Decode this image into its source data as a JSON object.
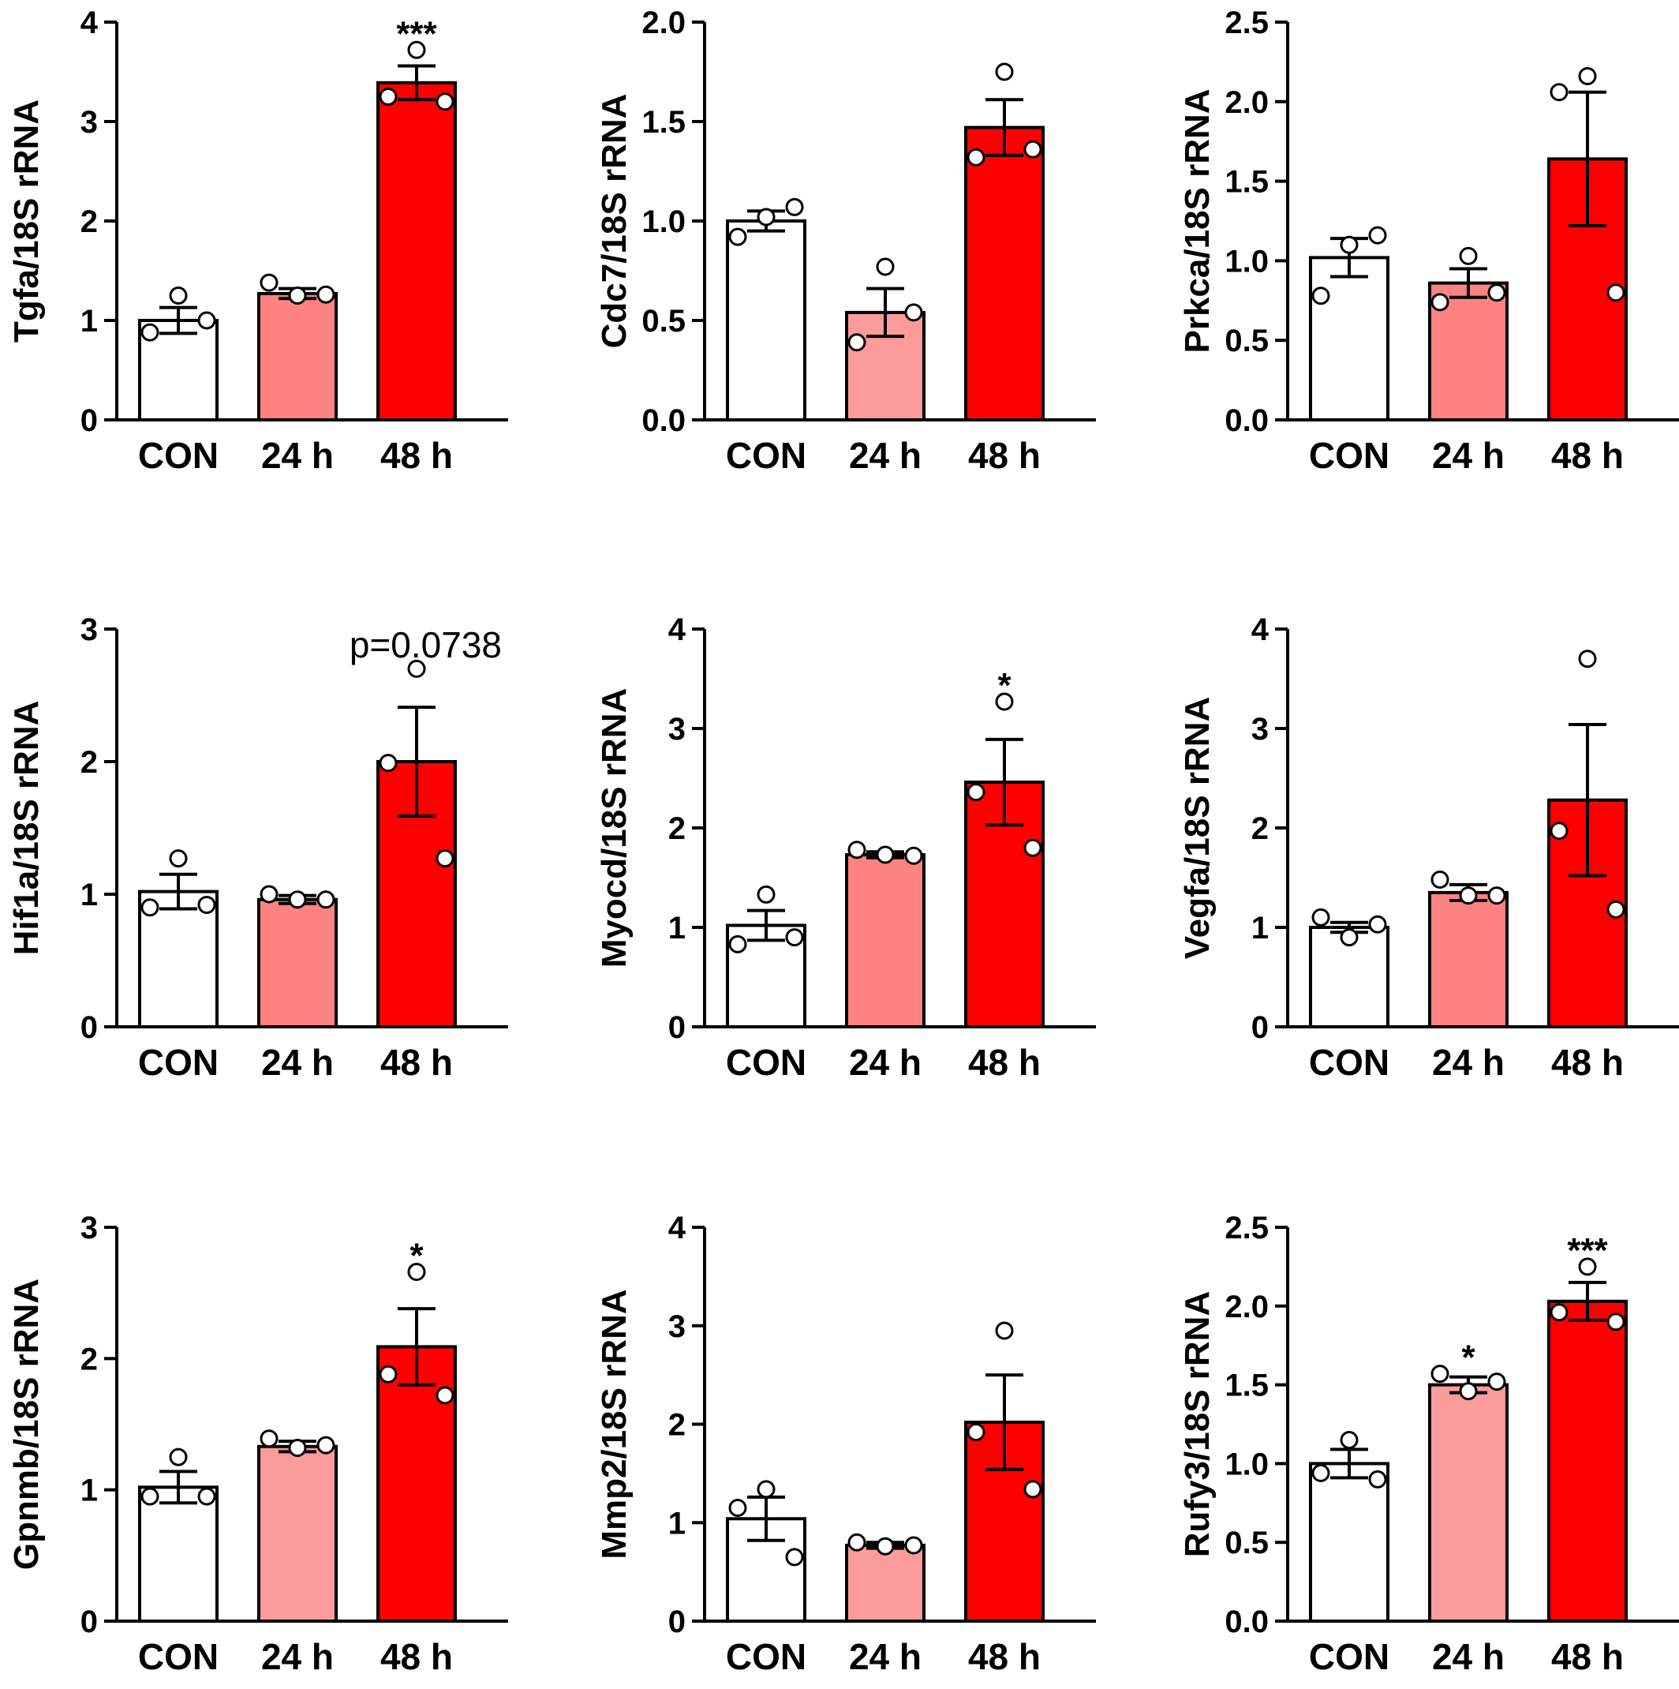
{
  "colors": {
    "CON": "#ffffff",
    "24 h": "#fd8282",
    "48 h": "#ff0000",
    "24 h light": "#fc9b9b",
    "outline": "#000000",
    "point": "#ffffff"
  },
  "chart_data": [
    {
      "type": "bar",
      "ylabel": "Tgfa/18S rRNA",
      "ylim": [
        0,
        4
      ],
      "yticks": [
        "0",
        "1",
        "2",
        "3",
        "4"
      ],
      "categories": [
        "CON",
        "24 h",
        "48 h"
      ],
      "bar_colors": [
        "CON",
        "24 h",
        "48 h"
      ],
      "values": [
        1.0,
        1.27,
        3.39
      ],
      "sem": [
        0.13,
        0.05,
        0.17
      ],
      "points": [
        [
          1.25,
          0.88,
          1.0
        ],
        [
          1.25,
          1.38,
          1.26
        ],
        [
          3.72,
          3.25,
          3.2
        ]
      ],
      "annotations": [
        "",
        "",
        "***"
      ]
    },
    {
      "type": "bar",
      "ylabel": "Cdc7/18S rRNA",
      "ylim": [
        0,
        2
      ],
      "yticks": [
        "0.0",
        "0.5",
        "1.0",
        "1.5",
        "2.0"
      ],
      "categories": [
        "CON",
        "24 h",
        "48 h"
      ],
      "bar_colors": [
        "CON",
        "24 h light",
        "48 h"
      ],
      "values": [
        1.0,
        0.54,
        1.47
      ],
      "sem": [
        0.05,
        0.12,
        0.14
      ],
      "points": [
        [
          1.02,
          0.92,
          1.07
        ],
        [
          0.77,
          0.39,
          0.54
        ],
        [
          1.75,
          1.32,
          1.36
        ]
      ],
      "annotations": [
        "",
        "",
        ""
      ]
    },
    {
      "type": "bar",
      "ylabel": "Prkca/18S rRNA",
      "ylim": [
        0,
        2.5
      ],
      "yticks": [
        "0.0",
        "0.5",
        "1.0",
        "1.5",
        "2.0",
        "2.5"
      ],
      "categories": [
        "CON",
        "24 h",
        "48 h"
      ],
      "bar_colors": [
        "CON",
        "24 h",
        "48 h"
      ],
      "values": [
        1.02,
        0.86,
        1.64
      ],
      "sem": [
        0.12,
        0.09,
        0.42
      ],
      "points": [
        [
          1.1,
          0.78,
          1.16
        ],
        [
          1.03,
          0.74,
          0.8
        ],
        [
          2.16,
          2.06,
          0.8
        ]
      ],
      "annotations": [
        "",
        "",
        ""
      ]
    },
    {
      "type": "bar",
      "ylabel": "Hif1a/18S rRNA",
      "ylim": [
        0,
        3
      ],
      "yticks": [
        "0",
        "1",
        "2",
        "3"
      ],
      "categories": [
        "CON",
        "24 h",
        "48 h"
      ],
      "bar_colors": [
        "CON",
        "24 h",
        "48 h"
      ],
      "values": [
        1.02,
        0.96,
        2.0
      ],
      "sem": [
        0.13,
        0.03,
        0.41
      ],
      "points": [
        [
          1.27,
          0.9,
          0.92
        ],
        [
          0.96,
          1.0,
          0.96
        ],
        [
          2.7,
          1.99,
          1.27
        ]
      ],
      "annotations": [
        "",
        "",
        "p=0.0738"
      ]
    },
    {
      "type": "bar",
      "ylabel": "Myocd/18S rRNA",
      "ylim": [
        0,
        4
      ],
      "yticks": [
        "0",
        "1",
        "2",
        "3",
        "4"
      ],
      "categories": [
        "CON",
        "24 h",
        "48 h"
      ],
      "bar_colors": [
        "CON",
        "24 h",
        "48 h"
      ],
      "values": [
        1.02,
        1.73,
        2.46
      ],
      "sem": [
        0.15,
        0.03,
        0.43
      ],
      "points": [
        [
          1.33,
          0.83,
          0.9
        ],
        [
          1.73,
          1.78,
          1.72
        ],
        [
          3.27,
          2.36,
          1.8
        ]
      ],
      "annotations": [
        "",
        "",
        "*"
      ]
    },
    {
      "type": "bar",
      "ylabel": "Vegfa/18S rRNA",
      "ylim": [
        0,
        4
      ],
      "yticks": [
        "0",
        "1",
        "2",
        "3",
        "4"
      ],
      "categories": [
        "CON",
        "24 h",
        "48 h"
      ],
      "bar_colors": [
        "CON",
        "24 h",
        "48 h"
      ],
      "values": [
        1.0,
        1.35,
        2.28
      ],
      "sem": [
        0.05,
        0.08,
        0.76
      ],
      "points": [
        [
          0.9,
          1.1,
          1.03
        ],
        [
          1.32,
          1.48,
          1.32
        ],
        [
          3.7,
          1.97,
          1.18
        ]
      ],
      "annotations": [
        "",
        "",
        ""
      ]
    },
    {
      "type": "bar",
      "ylabel": "Gpnmb/18S rRNA",
      "ylim": [
        0,
        3
      ],
      "yticks": [
        "0",
        "1",
        "2",
        "3"
      ],
      "categories": [
        "CON",
        "24 h",
        "48 h"
      ],
      "bar_colors": [
        "CON",
        "24 h light",
        "48 h"
      ],
      "values": [
        1.02,
        1.33,
        2.09
      ],
      "sem": [
        0.12,
        0.04,
        0.29
      ],
      "points": [
        [
          1.25,
          0.95,
          0.95
        ],
        [
          1.32,
          1.39,
          1.34
        ],
        [
          2.66,
          1.88,
          1.72
        ]
      ],
      "annotations": [
        "",
        "",
        "*"
      ]
    },
    {
      "type": "bar",
      "ylabel": "Mmp2/18S rRNA",
      "ylim": [
        0,
        4
      ],
      "yticks": [
        "0",
        "1",
        "2",
        "3",
        "4"
      ],
      "categories": [
        "CON",
        "24 h",
        "48 h"
      ],
      "bar_colors": [
        "CON",
        "24 h light",
        "48 h"
      ],
      "values": [
        1.04,
        0.77,
        2.02
      ],
      "sem": [
        0.22,
        0.03,
        0.48
      ],
      "points": [
        [
          1.34,
          1.15,
          0.65
        ],
        [
          0.76,
          0.8,
          0.77
        ],
        [
          2.95,
          1.92,
          1.34
        ]
      ],
      "annotations": [
        "",
        "",
        ""
      ]
    },
    {
      "type": "bar",
      "ylabel": "Rufy3/18S rRNA",
      "ylim": [
        0,
        2.5
      ],
      "yticks": [
        "0.0",
        "0.5",
        "1.0",
        "1.5",
        "2.0",
        "2.5"
      ],
      "categories": [
        "CON",
        "24 h",
        "48 h"
      ],
      "bar_colors": [
        "CON",
        "24 h light",
        "48 h"
      ],
      "values": [
        1.0,
        1.5,
        2.03
      ],
      "sem": [
        0.09,
        0.05,
        0.12
      ],
      "points": [
        [
          1.15,
          0.94,
          0.9
        ],
        [
          1.46,
          1.57,
          1.52
        ],
        [
          2.25,
          1.96,
          1.9
        ]
      ],
      "annotations": [
        "",
        "*",
        "***"
      ]
    }
  ]
}
